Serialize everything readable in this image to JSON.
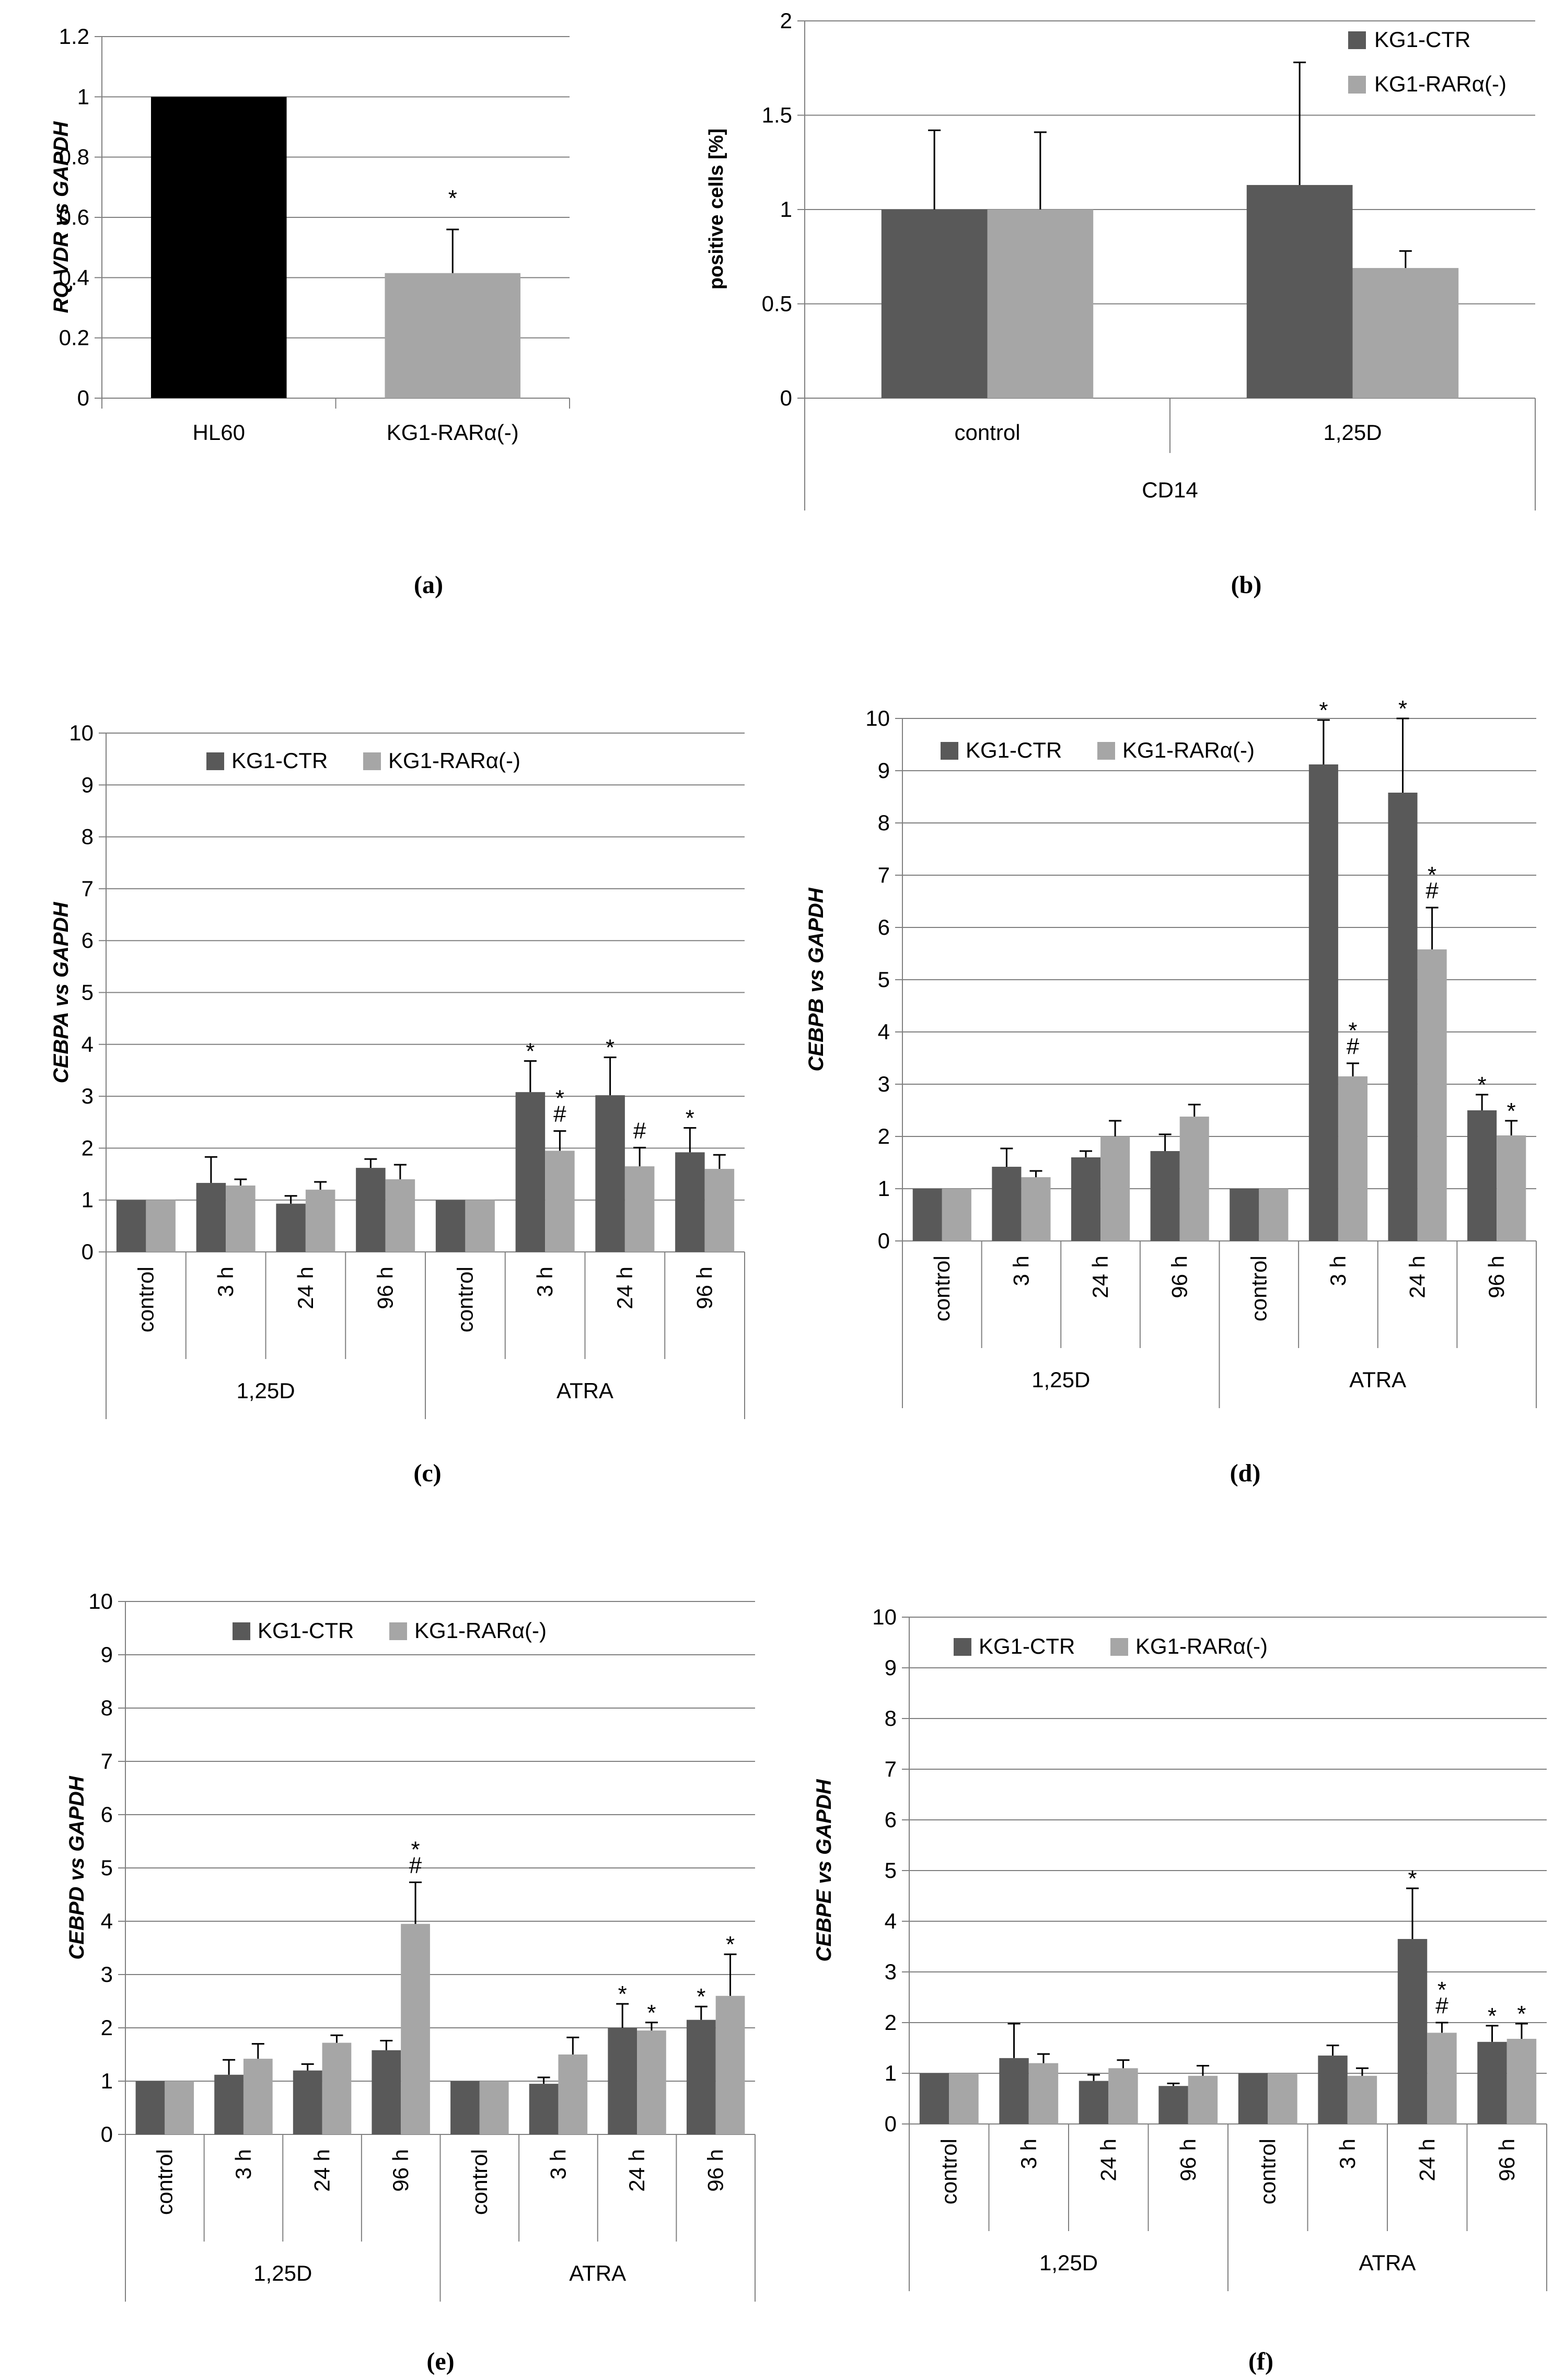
{
  "colors": {
    "ctr": "#595959",
    "rar": "#a6a6a6",
    "hl60": "#000000",
    "grid": "#808080",
    "axis": "#808080"
  },
  "chart_data": [
    {
      "id": "a",
      "caption": "(a)",
      "type": "bar",
      "ylabel": "RQ VDR vs GAPDH",
      "ylim": [
        0,
        1.2
      ],
      "yticks": [
        "0",
        "0.2",
        "0.4",
        "0.6",
        "0.8",
        "1",
        "1.2"
      ],
      "categories": [
        "HL60",
        "KG1-RARα(-)"
      ],
      "values": [
        1,
        0.415
      ],
      "errors": [
        0,
        0.145
      ],
      "annotations": [
        "",
        "*"
      ]
    },
    {
      "id": "b",
      "caption": "(b)",
      "type": "bar",
      "ylabel": "positive cells [%]",
      "ylim": [
        0,
        2
      ],
      "yticks": [
        "0",
        "0.5",
        "1",
        "1.5",
        "2"
      ],
      "categories": [
        "control",
        "1,25D"
      ],
      "group": "CD14",
      "legend": [
        "KG1-CTR",
        "KG1-RARα(-)"
      ],
      "series": [
        {
          "name": "KG1-CTR",
          "values": [
            1.0,
            1.13
          ],
          "errors": [
            0.42,
            0.65
          ]
        },
        {
          "name": "KG1-RARα(-)",
          "values": [
            1.0,
            0.69
          ],
          "errors": [
            0.41,
            0.09
          ]
        }
      ]
    },
    {
      "id": "c",
      "caption": "(c)",
      "type": "bar",
      "ylabel": "CEBPA vs GAPDH",
      "ylim": [
        0,
        10
      ],
      "yticks": [
        "0",
        "1",
        "2",
        "3",
        "4",
        "5",
        "6",
        "7",
        "8",
        "9",
        "10"
      ],
      "categories": [
        "control",
        "3 h",
        "24 h",
        "96 h",
        "control",
        "3 h",
        "24 h",
        "96 h"
      ],
      "groups": [
        "1,25D",
        "ATRA"
      ],
      "legend": [
        "KG1-CTR",
        "KG1-RARα(-)"
      ],
      "series": [
        {
          "name": "KG1-CTR",
          "values": [
            1,
            1.33,
            0.93,
            1.62,
            1,
            3.08,
            3.02,
            1.92
          ],
          "errors": [
            0,
            0.5,
            0.15,
            0.17,
            0,
            0.6,
            0.73,
            0.47
          ],
          "annotations": [
            "",
            "",
            "",
            "",
            "",
            "*",
            "*",
            "*"
          ]
        },
        {
          "name": "KG1-RARα(-)",
          "values": [
            1,
            1.28,
            1.2,
            1.4,
            1,
            1.95,
            1.65,
            1.6
          ],
          "errors": [
            0,
            0.12,
            0.15,
            0.28,
            0,
            0.38,
            0.36,
            0.27
          ],
          "annotations": [
            "",
            "",
            "",
            "",
            "",
            "*\n#",
            "#",
            ""
          ]
        }
      ]
    },
    {
      "id": "d",
      "caption": "(d)",
      "type": "bar",
      "ylabel": "CEBPB vs GAPDH",
      "ylim": [
        0,
        10
      ],
      "yticks": [
        "0",
        "1",
        "2",
        "3",
        "4",
        "5",
        "6",
        "7",
        "8",
        "9",
        "10"
      ],
      "categories": [
        "control",
        "3 h",
        "24 h",
        "96 h",
        "control",
        "3 h",
        "24 h",
        "96 h"
      ],
      "groups": [
        "1,25D",
        "ATRA"
      ],
      "legend": [
        "KG1-CTR",
        "KG1-RARα(-)"
      ],
      "series": [
        {
          "name": "KG1-CTR",
          "values": [
            1,
            1.42,
            1.6,
            1.72,
            1,
            9.12,
            8.58,
            2.5
          ],
          "errors": [
            0,
            0.35,
            0.12,
            0.32,
            0,
            0.85,
            1.42,
            0.3
          ],
          "annotations": [
            "",
            "",
            "",
            "",
            "",
            "*",
            "*",
            "*"
          ]
        },
        {
          "name": "KG1-RARα(-)",
          "values": [
            1,
            1.22,
            2.0,
            2.38,
            1,
            3.15,
            5.58,
            2.02
          ],
          "errors": [
            0,
            0.12,
            0.3,
            0.23,
            0,
            0.25,
            0.8,
            0.28
          ],
          "annotations": [
            "",
            "",
            "",
            "",
            "",
            "*\n#",
            "*\n#",
            "*"
          ]
        }
      ]
    },
    {
      "id": "e",
      "caption": "(e)",
      "type": "bar",
      "ylabel": "CEBPD vs GAPDH",
      "ylim": [
        0,
        10
      ],
      "yticks": [
        "0",
        "1",
        "2",
        "3",
        "4",
        "5",
        "6",
        "7",
        "8",
        "9",
        "10"
      ],
      "categories": [
        "control",
        "3 h",
        "24 h",
        "96 h",
        "control",
        "3 h",
        "24 h",
        "96 h"
      ],
      "groups": [
        "1,25D",
        "ATRA"
      ],
      "legend": [
        "KG1-CTR",
        "KG1-RARα(-)"
      ],
      "series": [
        {
          "name": "KG1-CTR",
          "values": [
            1,
            1.12,
            1.2,
            1.58,
            1,
            0.95,
            2.0,
            2.15
          ],
          "errors": [
            0,
            0.28,
            0.12,
            0.18,
            0,
            0.12,
            0.45,
            0.25
          ],
          "annotations": [
            "",
            "",
            "",
            "",
            "",
            "",
            "*",
            "*"
          ]
        },
        {
          "name": "KG1-RARα(-)",
          "values": [
            1,
            1.42,
            1.72,
            3.95,
            1,
            1.5,
            1.95,
            2.6
          ],
          "errors": [
            0,
            0.28,
            0.14,
            0.78,
            0,
            0.32,
            0.15,
            0.78
          ],
          "annotations": [
            "",
            "",
            "",
            "*\n#",
            "",
            "",
            "*",
            "*"
          ]
        }
      ]
    },
    {
      "id": "f",
      "caption": "(f)",
      "type": "bar",
      "ylabel": "CEBPE vs GAPDH",
      "ylim": [
        0,
        10
      ],
      "yticks": [
        "0",
        "1",
        "2",
        "3",
        "4",
        "5",
        "6",
        "7",
        "8",
        "9",
        "10"
      ],
      "categories": [
        "control",
        "3 h",
        "24 h",
        "96 h",
        "control",
        "3 h",
        "24 h",
        "96 h"
      ],
      "groups": [
        "1,25D",
        "ATRA"
      ],
      "legend": [
        "KG1-CTR",
        "KG1-RARα(-)"
      ],
      "series": [
        {
          "name": "KG1-CTR",
          "values": [
            1,
            1.3,
            0.85,
            0.75,
            1,
            1.35,
            3.65,
            1.62
          ],
          "errors": [
            0,
            0.68,
            0.12,
            0.05,
            0,
            0.2,
            1.0,
            0.32
          ],
          "annotations": [
            "",
            "",
            "",
            "",
            "",
            "",
            "*",
            "*"
          ]
        },
        {
          "name": "KG1-RARα(-)",
          "values": [
            1,
            1.2,
            1.1,
            0.95,
            1,
            0.95,
            1.8,
            1.68
          ],
          "errors": [
            0,
            0.18,
            0.16,
            0.2,
            0,
            0.15,
            0.2,
            0.3
          ],
          "annotations": [
            "",
            "",
            "",
            "",
            "",
            "",
            "*\n#",
            "*"
          ]
        }
      ]
    }
  ]
}
